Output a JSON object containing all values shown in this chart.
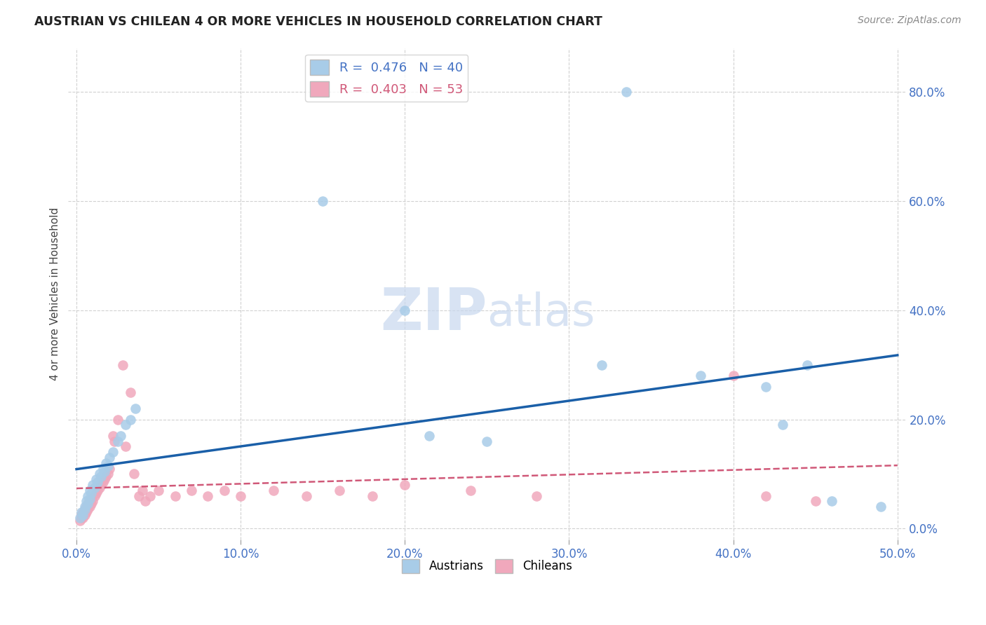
{
  "title": "AUSTRIAN VS CHILEAN 4 OR MORE VEHICLES IN HOUSEHOLD CORRELATION CHART",
  "source": "Source: ZipAtlas.com",
  "ylabel": "4 or more Vehicles in Household",
  "xlim": [
    -0.005,
    0.505
  ],
  "ylim": [
    -0.02,
    0.88
  ],
  "xticks": [
    0.0,
    0.1,
    0.2,
    0.3,
    0.4,
    0.5
  ],
  "yticks": [
    0.0,
    0.2,
    0.4,
    0.6,
    0.8
  ],
  "background_color": "#ffffff",
  "grid_color": "#cccccc",
  "austrian_color": "#a8cce8",
  "chilean_color": "#f0a8bc",
  "austrian_line_color": "#1a5fa8",
  "chilean_line_color": "#d05878",
  "tick_label_color": "#4472c4",
  "watermark_color": "#ddeeff",
  "legend_R_austrians": "0.476",
  "legend_N_austrians": "40",
  "legend_R_chileans": "0.403",
  "legend_N_chileans": "53",
  "austrian_x": [
    0.002,
    0.003,
    0.004,
    0.005,
    0.005,
    0.006,
    0.007,
    0.007,
    0.008,
    0.008,
    0.009,
    0.01,
    0.011,
    0.012,
    0.013,
    0.014,
    0.015,
    0.016,
    0.017,
    0.018,
    0.019,
    0.02,
    0.022,
    0.025,
    0.027,
    0.03,
    0.033,
    0.036,
    0.15,
    0.2,
    0.215,
    0.25,
    0.32,
    0.38,
    0.42,
    0.445,
    0.46,
    0.335,
    0.43,
    0.49
  ],
  "austrian_y": [
    0.02,
    0.03,
    0.025,
    0.04,
    0.035,
    0.05,
    0.045,
    0.06,
    0.055,
    0.07,
    0.065,
    0.08,
    0.075,
    0.09,
    0.085,
    0.1,
    0.095,
    0.11,
    0.105,
    0.12,
    0.115,
    0.13,
    0.14,
    0.16,
    0.17,
    0.19,
    0.2,
    0.22,
    0.6,
    0.4,
    0.17,
    0.16,
    0.3,
    0.28,
    0.26,
    0.3,
    0.05,
    0.8,
    0.19,
    0.04
  ],
  "chilean_x": [
    0.002,
    0.003,
    0.003,
    0.004,
    0.004,
    0.005,
    0.005,
    0.006,
    0.006,
    0.007,
    0.007,
    0.008,
    0.008,
    0.009,
    0.009,
    0.01,
    0.011,
    0.012,
    0.013,
    0.014,
    0.015,
    0.016,
    0.017,
    0.018,
    0.019,
    0.02,
    0.022,
    0.023,
    0.025,
    0.028,
    0.03,
    0.033,
    0.035,
    0.038,
    0.04,
    0.042,
    0.045,
    0.05,
    0.06,
    0.07,
    0.08,
    0.09,
    0.1,
    0.12,
    0.14,
    0.16,
    0.18,
    0.2,
    0.24,
    0.28,
    0.4,
    0.42,
    0.45
  ],
  "chilean_y": [
    0.015,
    0.02,
    0.025,
    0.02,
    0.03,
    0.025,
    0.035,
    0.03,
    0.04,
    0.035,
    0.045,
    0.04,
    0.05,
    0.045,
    0.055,
    0.05,
    0.06,
    0.065,
    0.07,
    0.075,
    0.08,
    0.085,
    0.09,
    0.095,
    0.1,
    0.11,
    0.17,
    0.16,
    0.2,
    0.3,
    0.15,
    0.25,
    0.1,
    0.06,
    0.07,
    0.05,
    0.06,
    0.07,
    0.06,
    0.07,
    0.06,
    0.07,
    0.06,
    0.07,
    0.06,
    0.07,
    0.06,
    0.08,
    0.07,
    0.06,
    0.28,
    0.06,
    0.05
  ]
}
